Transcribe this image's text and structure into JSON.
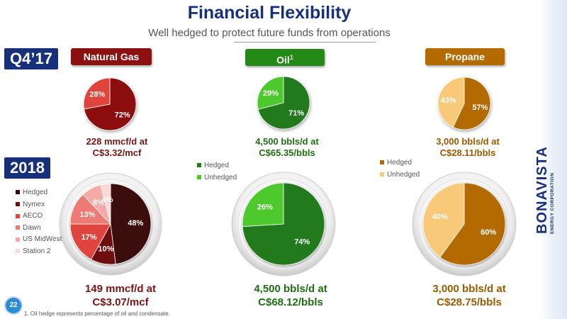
{
  "header": {
    "title": "Financial Flexibility",
    "subtitle": "Well hedged to protect future funds from operations"
  },
  "periods": {
    "q4": "Q4’17",
    "y2018": "2018"
  },
  "columns": {
    "gas": {
      "label": "Natural Gas",
      "q4_caption": [
        "228 mmcf/d at",
        "C$3.32/mcf"
      ],
      "y2018_caption": [
        "149 mmcf/d at",
        "C$3.07/mcf"
      ]
    },
    "oil": {
      "label": "Oil",
      "label_sup": "1",
      "q4_caption": [
        "4,500 bbls/d at",
        "C$65.35/bbls"
      ],
      "y2018_caption": [
        "4,500 bbls/d at",
        "C$68.12/bbls"
      ]
    },
    "propane": {
      "label": "Propane",
      "q4_caption": [
        "3,000 bbls/d at",
        "C$28.11/bbls"
      ],
      "y2018_caption": [
        "3,000 bbls/d at",
        "C$28.75/bbls"
      ]
    }
  },
  "colors": {
    "gas_chip": "#8b1010",
    "oil_chip": "#238a16",
    "propane_chip": "#b36b00",
    "period_bg": "#17307a",
    "caption_gas": "#7a1414",
    "caption_oil": "#1f6e12",
    "caption_propane": "#9a5a00"
  },
  "chart_data": [
    {
      "type": "pie",
      "id": "gas_q4",
      "labels": [
        "Hedged",
        "Unhedged"
      ],
      "values": [
        72,
        28
      ],
      "value_labels": [
        "72%",
        "28%"
      ],
      "colors": [
        "#8b1010",
        "#e0443c"
      ]
    },
    {
      "type": "pie",
      "id": "oil_q4",
      "labels": [
        "Hedged",
        "Unhedged"
      ],
      "values": [
        71,
        29
      ],
      "value_labels": [
        "71%",
        "29%"
      ],
      "colors": [
        "#237a1a",
        "#4dc92f"
      ]
    },
    {
      "type": "pie",
      "id": "propane_q4",
      "labels": [
        "Hedged",
        "Unhedged"
      ],
      "values": [
        57,
        43
      ],
      "value_labels": [
        "57%",
        "43%"
      ],
      "colors": [
        "#b36b00",
        "#f7c978"
      ]
    },
    {
      "type": "pie",
      "id": "gas_2018",
      "labels": [
        "Hedged",
        "Nymex",
        "AECO",
        "Dawn",
        "US MidWest",
        "Station 2"
      ],
      "values": [
        48,
        10,
        17,
        13,
        8,
        4
      ],
      "value_labels": [
        "48%",
        "10%",
        "17%",
        "13%",
        "8%",
        "4%"
      ],
      "colors": [
        "#3a0a0a",
        "#6e1010",
        "#e0443c",
        "#ee7a74",
        "#f5aaa8",
        "#fbd8d8"
      ]
    },
    {
      "type": "pie",
      "id": "oil_2018",
      "labels": [
        "Hedged",
        "Unhedged"
      ],
      "values": [
        74,
        26
      ],
      "value_labels": [
        "74%",
        "26%"
      ],
      "colors": [
        "#237a1a",
        "#4dc92f"
      ]
    },
    {
      "type": "pie",
      "id": "propane_2018",
      "labels": [
        "Hedged",
        "Unhedged"
      ],
      "values": [
        60,
        40
      ],
      "value_labels": [
        "60%",
        "40%"
      ],
      "colors": [
        "#b36b00",
        "#f7c978"
      ]
    }
  ],
  "legends": {
    "gas": [
      "Hedged",
      "Nymex",
      "AECO",
      "Dawn",
      "US MidWest",
      "Station 2"
    ],
    "oil": [
      "Hedged",
      "Unhedged"
    ],
    "propane": [
      "Hedged",
      "Unhedged"
    ]
  },
  "footer": {
    "footnote": "1. Oil hedge represents percentage of oil and condensate.",
    "page_number": "22"
  },
  "brand": {
    "name": "BONAVISTA",
    "tagline": "ENERGY CORPORATION"
  }
}
